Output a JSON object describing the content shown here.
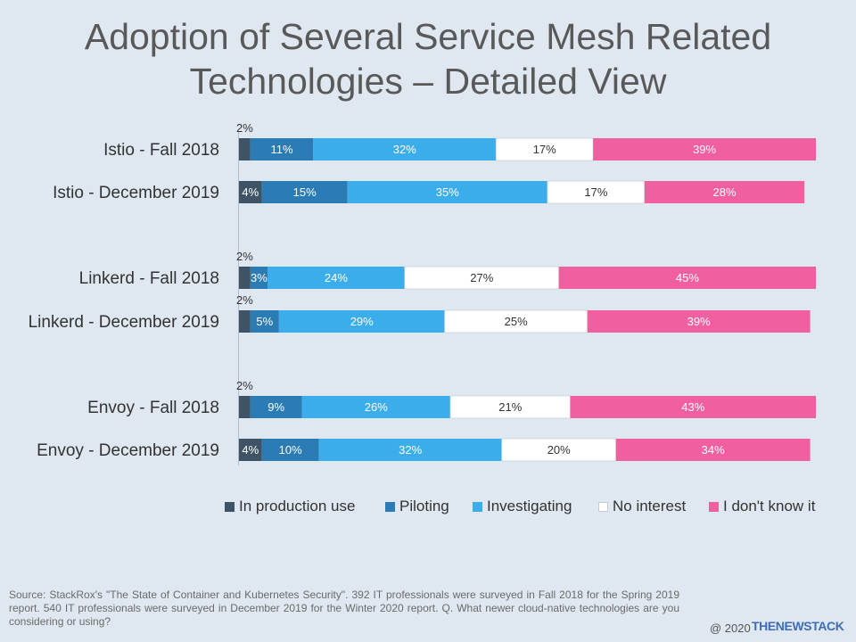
{
  "chart_data": {
    "type": "bar",
    "orientation": "horizontal",
    "stacked": true,
    "title": "Adoption of Several Service Mesh Related Technologies – Detailed View",
    "categories": [
      "Istio - Fall 2018",
      "Istio - December 2019",
      "Linkerd - Fall 2018",
      "Linkerd - December 2019",
      "Envoy - Fall 2018",
      "Envoy - December 2019"
    ],
    "unit": "%",
    "series": [
      {
        "name": "In production use",
        "color": "#3e5365",
        "values": [
          2,
          4,
          2,
          2,
          2,
          4
        ]
      },
      {
        "name": "Piloting",
        "color": "#2b7bb4",
        "values": [
          11,
          15,
          3,
          5,
          9,
          10
        ]
      },
      {
        "name": "Investigating",
        "color": "#3badea",
        "values": [
          32,
          35,
          24,
          29,
          26,
          32
        ]
      },
      {
        "name": "No interest",
        "color": "#ffffff",
        "values": [
          17,
          17,
          27,
          25,
          21,
          20
        ]
      },
      {
        "name": "I don't know it",
        "color": "#f05fa0",
        "values": [
          39,
          28,
          45,
          39,
          43,
          34
        ]
      }
    ],
    "data_labels": true,
    "grid": false,
    "legend_position": "bottom"
  },
  "theme": {
    "background": "#dfe7f0"
  },
  "footer": {
    "source": "Source: StackRox's \"The State of Container and Kubernetes Security\". 392 IT professionals were surveyed in Fall 2018 for the Spring 2019 report. 540 IT professionals were surveyed in December 2019 for the Winter 2020 report. Q. What newer cloud-native technologies are you considering or using?",
    "copyright": "@ 2020",
    "logo_text": "THENEWSTACK"
  }
}
